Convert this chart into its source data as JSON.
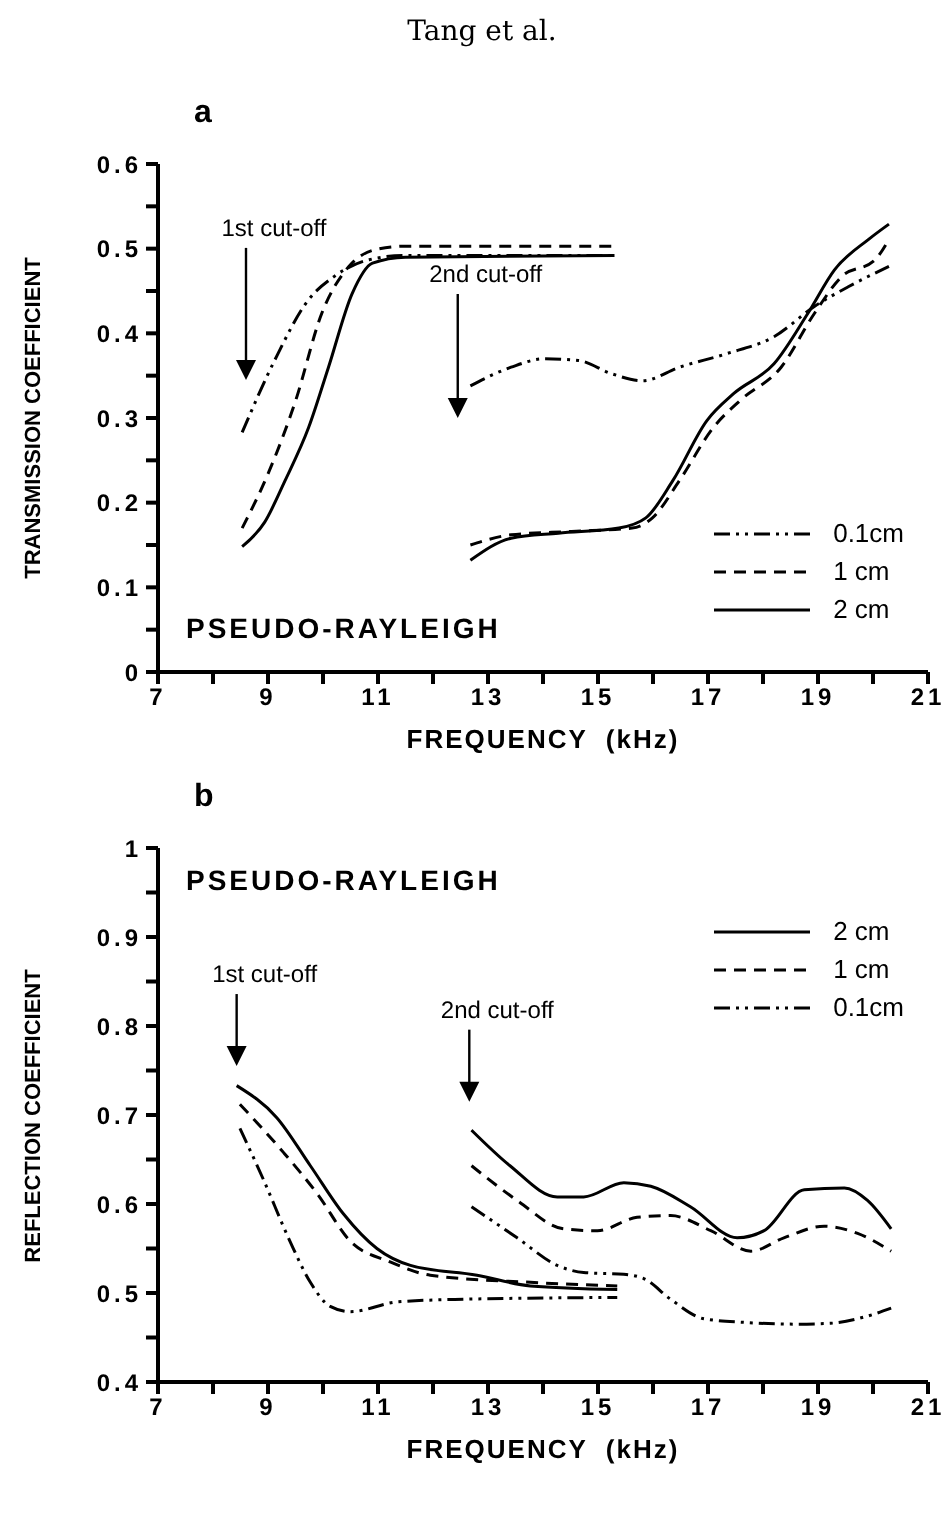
{
  "chart_data": [
    {
      "type": "line",
      "title": "a",
      "xlabel": "FREQUENCY  (kHz)",
      "ylabel": "TRANSMISSION COEFFICIENT",
      "xlim": [
        7,
        21
      ],
      "ylim": [
        0,
        0.6
      ],
      "xticks": [
        7,
        {
          "value": 8,
          "label": null
        },
        9,
        {
          "value": 10,
          "label": null
        },
        11,
        {
          "value": 12,
          "label": null
        },
        13,
        {
          "value": 14,
          "label": null
        },
        15,
        {
          "value": 16,
          "label": null
        },
        17,
        {
          "value": 18,
          "label": null
        },
        19,
        {
          "value": 20,
          "label": null
        },
        21
      ],
      "yticks": [
        0,
        {
          "value": 0.05,
          "label": null
        },
        0.1,
        {
          "value": 0.15,
          "label": null
        },
        0.2,
        {
          "value": 0.25,
          "label": null
        },
        0.3,
        {
          "value": 0.35,
          "label": null
        },
        0.4,
        {
          "value": 0.45,
          "label": null
        },
        0.5,
        {
          "value": 0.55,
          "label": null
        },
        0.6
      ],
      "legend": "bottom right",
      "annotations": [
        "PSEUDO-RAYLEIGH",
        "1st cut-off",
        "2nd cut-off",
        "Tang et al."
      ],
      "series": [
        {
          "name": "0.1cm",
          "color": "#000000",
          "line_style": "dotted",
          "x": [
            8.53,
            9.12,
            9.74,
            10.2,
            10.84,
            11.5,
            15.3
          ],
          "values": [
            0.283,
            0.368,
            0.44,
            0.467,
            0.487,
            0.492,
            0.492
          ]
        },
        {
          "name": "1 cm",
          "color": "#000000",
          "line_style": "dashed",
          "x": [
            8.53,
            9.0,
            9.5,
            9.98,
            10.47,
            10.96,
            11.5,
            15.3
          ],
          "values": [
            0.17,
            0.234,
            0.32,
            0.424,
            0.479,
            0.499,
            0.503,
            0.503
          ]
        },
        {
          "name": "2 cm",
          "color": "#000000",
          "line_style": "solid",
          "x": [
            8.53,
            8.94,
            9.31,
            9.74,
            10.1,
            10.53,
            10.9,
            11.5,
            15.3
          ],
          "values": [
            0.148,
            0.177,
            0.226,
            0.289,
            0.36,
            0.447,
            0.483,
            0.49,
            0.492
          ]
        },
        {
          "color": "#000000",
          "line_style": "dotted",
          "x": [
            12.68,
            13.42,
            14.03,
            14.64,
            15.26,
            15.81,
            16.48,
            17.34,
            18.2,
            18.94,
            19.55,
            20.29
          ],
          "values": [
            0.338,
            0.36,
            0.37,
            0.368,
            0.352,
            0.344,
            0.36,
            0.376,
            0.396,
            0.432,
            0.455,
            0.479
          ]
        },
        {
          "color": "#000000",
          "line_style": "dashed",
          "x": [
            12.68,
            13.42,
            14.52,
            15.62,
            15.99,
            16.48,
            17.1,
            17.59,
            18.33,
            18.94,
            19.43,
            20.04,
            20.29
          ],
          "values": [
            0.15,
            0.162,
            0.166,
            0.17,
            0.182,
            0.226,
            0.289,
            0.321,
            0.36,
            0.424,
            0.467,
            0.487,
            0.511
          ]
        },
        {
          "color": "#000000",
          "line_style": "solid",
          "x": [
            12.68,
            13.42,
            14.28,
            15.38,
            15.87,
            16.36,
            16.98,
            17.47,
            18.2,
            18.82,
            19.3,
            19.92,
            20.29
          ],
          "values": [
            0.132,
            0.158,
            0.164,
            0.17,
            0.182,
            0.226,
            0.297,
            0.329,
            0.364,
            0.424,
            0.475,
            0.511,
            0.529
          ]
        }
      ]
    },
    {
      "type": "line",
      "title": "b",
      "xlabel": "FREQUENCY  (kHz)",
      "ylabel": "REFLECTION COEFFICIENT",
      "xlim": [
        7,
        21
      ],
      "ylim": [
        0.4,
        1
      ],
      "xticks": [
        7,
        {
          "value": 8,
          "label": null
        },
        9,
        {
          "value": 10,
          "label": null
        },
        11,
        {
          "value": 12,
          "label": null
        },
        13,
        {
          "value": 14,
          "label": null
        },
        15,
        {
          "value": 16,
          "label": null
        },
        17,
        {
          "value": 18,
          "label": null
        },
        19,
        {
          "value": 20,
          "label": null
        },
        21
      ],
      "yticks": [
        0.4,
        {
          "value": 0.45,
          "label": null
        },
        0.5,
        {
          "value": 0.55,
          "label": null
        },
        0.6,
        {
          "value": 0.65,
          "label": null
        },
        0.7,
        {
          "value": 0.75,
          "label": null
        },
        0.8,
        {
          "value": 0.85,
          "label": null
        },
        0.9,
        {
          "value": 0.95,
          "label": null
        },
        1
      ],
      "legend": "top right",
      "annotations": [
        "PSEUDO-RAYLEIGH",
        "1st cut-off",
        "2nd cut-off"
      ],
      "series": [
        {
          "name": "2 cm",
          "color": "#000000",
          "line_style": "solid",
          "x": [
            8.43,
            9.16,
            9.77,
            10.37,
            10.98,
            11.59,
            12.8,
            13.77,
            15.35
          ],
          "values": [
            0.733,
            0.697,
            0.643,
            0.589,
            0.55,
            0.531,
            0.52,
            0.508,
            0.504
          ]
        },
        {
          "name": "1 cm",
          "color": "#000000",
          "line_style": "dashed",
          "x": [
            8.49,
            9.28,
            9.89,
            10.5,
            11.22,
            11.95,
            13.77,
            15.35
          ],
          "values": [
            0.712,
            0.658,
            0.612,
            0.558,
            0.535,
            0.52,
            0.512,
            0.508
          ]
        },
        {
          "name": "0.1cm",
          "color": "#000000",
          "line_style": "dotted",
          "x": [
            8.49,
            8.92,
            9.4,
            9.77,
            10.13,
            10.5,
            11.35,
            12.56,
            15.35
          ],
          "values": [
            0.685,
            0.627,
            0.558,
            0.512,
            0.485,
            0.479,
            0.49,
            0.493,
            0.495
          ]
        },
        {
          "color": "#000000",
          "line_style": "solid",
          "x": [
            12.7,
            13.4,
            14.26,
            14.74,
            15.47,
            15.96,
            16.68,
            17.53,
            18.02,
            18.75,
            19.48,
            19.9,
            20.33
          ],
          "values": [
            0.683,
            0.643,
            0.608,
            0.608,
            0.624,
            0.62,
            0.597,
            0.562,
            0.57,
            0.616,
            0.618,
            0.604,
            0.572
          ]
        },
        {
          "color": "#000000",
          "line_style": "dashed",
          "x": [
            12.7,
            13.53,
            14.38,
            14.99,
            15.71,
            16.32,
            17.05,
            17.78,
            18.38,
            19.11,
            19.72,
            20.33
          ],
          "values": [
            0.643,
            0.604,
            0.572,
            0.57,
            0.585,
            0.587,
            0.57,
            0.547,
            0.562,
            0.575,
            0.567,
            0.547
          ]
        },
        {
          "color": "#000000",
          "line_style": "dotted",
          "x": [
            12.7,
            13.53,
            14.26,
            14.74,
            15.47,
            15.84,
            16.32,
            16.93,
            17.66,
            18.63,
            19.23,
            19.84,
            20.33
          ],
          "values": [
            0.597,
            0.562,
            0.531,
            0.523,
            0.521,
            0.516,
            0.493,
            0.471,
            0.467,
            0.465,
            0.466,
            0.473,
            0.483
          ]
        }
      ]
    }
  ]
}
